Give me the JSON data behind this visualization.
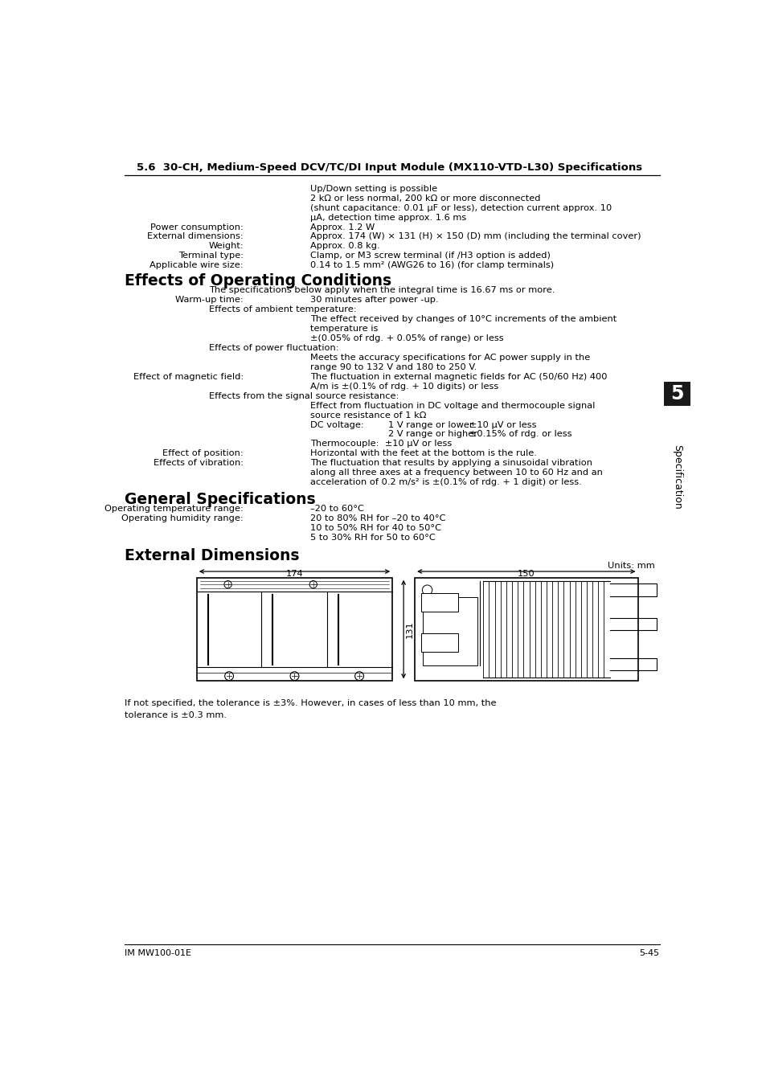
{
  "title": "5.6  30-CH, Medium-Speed DCV/TC/DI Input Module (MX110-VTD-L30) Specifications",
  "section1_header": "Effects of Operating Conditions",
  "section2_header": "General Specifications",
  "section3_header": "External Dimensions",
  "footer_left": "IM MW100-01E",
  "footer_right": "5-45",
  "sidebar_text": "Specification",
  "sidebar_number": "5",
  "background_color": "#ffffff",
  "text_color": "#000000",
  "dim_note": "Units: mm",
  "dim_width1": "174",
  "dim_width2": "150",
  "dim_height": "131",
  "tolerance_note": "If not specified, the tolerance is ±3%. However, in cases of less than 10 mm, the",
  "tolerance_note2": "tolerance is ±0.3 mm."
}
